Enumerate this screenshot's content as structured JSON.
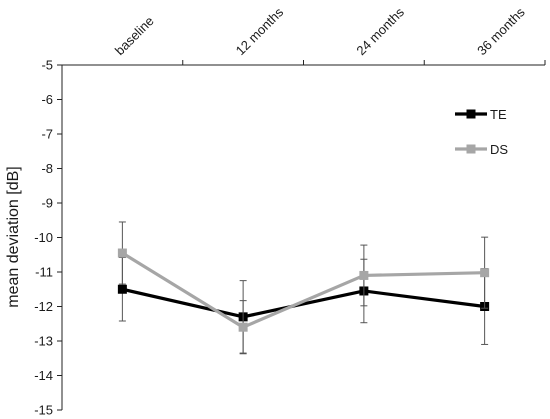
{
  "chart_data": {
    "type": "line",
    "categories": [
      "baseline",
      "12 months",
      "24 months",
      "36 months"
    ],
    "ylabel": "mean deviation [dB]",
    "xlabel": "",
    "ylim": [
      -15,
      -5
    ],
    "y_ticks": [
      -5,
      -6,
      -7,
      -8,
      -9,
      -10,
      -11,
      -12,
      -13,
      -14,
      -15
    ],
    "x_axis_position": "top",
    "grid": false,
    "legend_position": "top-right",
    "series": [
      {
        "name": "TE",
        "color": "#000000",
        "marker": "square",
        "values": [
          -11.5,
          -12.3,
          -11.55,
          -12.0
        ],
        "errors": [
          0.92,
          1.05,
          0.92,
          1.1
        ]
      },
      {
        "name": "DS",
        "color": "#a6a6a6",
        "marker": "square",
        "values": [
          -10.45,
          -12.6,
          -11.1,
          -11.02
        ],
        "errors": [
          0.9,
          0.77,
          0.88,
          1.03
        ]
      }
    ]
  }
}
